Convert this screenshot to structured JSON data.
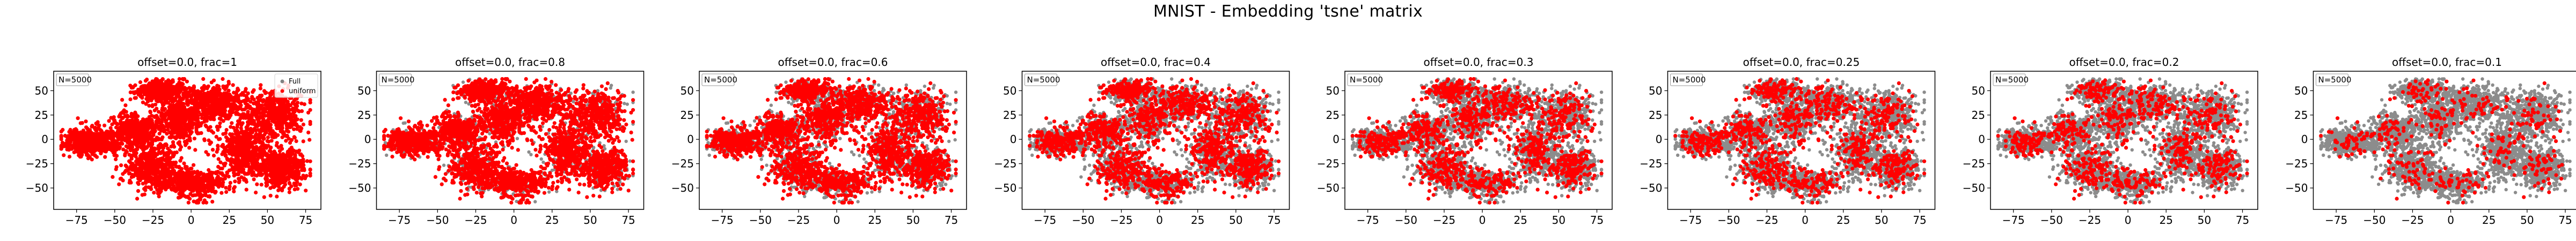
{
  "figure": {
    "title": "MNIST - Embedding 'tsne' matrix"
  },
  "colors": {
    "full": "#808080",
    "sample": "#ff0000",
    "axes": "#000000",
    "background": "#ffffff"
  },
  "chart_data": [
    {
      "type": "scatter",
      "title": "offset=0.0, frac=1",
      "annotation": "N=5000",
      "legend": [
        "Full",
        "uniform"
      ],
      "legend_position": "upper right",
      "frac": 1,
      "xlim": [
        -90,
        85
      ],
      "ylim": [
        -72,
        70
      ],
      "xticks": [
        -75,
        -50,
        -25,
        0,
        25,
        50,
        75
      ],
      "yticks": [
        -50,
        -25,
        0,
        25,
        50
      ],
      "series": [
        {
          "name": "Full"
        },
        {
          "name": "uniform"
        }
      ]
    },
    {
      "type": "scatter",
      "title": "offset=0.0, frac=0.8",
      "annotation": "N=5000",
      "frac": 0.8,
      "xlim": [
        -90,
        85
      ],
      "ylim": [
        -72,
        70
      ],
      "xticks": [
        -75,
        -50,
        -25,
        0,
        25,
        50,
        75
      ],
      "yticks": [
        -50,
        -25,
        0,
        25,
        50
      ]
    },
    {
      "type": "scatter",
      "title": "offset=0.0, frac=0.6",
      "annotation": "N=5000",
      "frac": 0.6,
      "xlim": [
        -90,
        85
      ],
      "ylim": [
        -72,
        70
      ],
      "xticks": [
        -75,
        -50,
        -25,
        0,
        25,
        50,
        75
      ],
      "yticks": [
        -50,
        -25,
        0,
        25,
        50
      ]
    },
    {
      "type": "scatter",
      "title": "offset=0.0, frac=0.4",
      "annotation": "N=5000",
      "frac": 0.4,
      "xlim": [
        -90,
        85
      ],
      "ylim": [
        -72,
        70
      ],
      "xticks": [
        -75,
        -50,
        -25,
        0,
        25,
        50,
        75
      ],
      "yticks": [
        -50,
        -25,
        0,
        25,
        50
      ]
    },
    {
      "type": "scatter",
      "title": "offset=0.0, frac=0.3",
      "annotation": "N=5000",
      "frac": 0.3,
      "xlim": [
        -90,
        85
      ],
      "ylim": [
        -72,
        70
      ],
      "xticks": [
        -75,
        -50,
        -25,
        0,
        25,
        50,
        75
      ],
      "yticks": [
        -50,
        -25,
        0,
        25,
        50
      ]
    },
    {
      "type": "scatter",
      "title": "offset=0.0, frac=0.25",
      "annotation": "N=5000",
      "frac": 0.25,
      "xlim": [
        -90,
        85
      ],
      "ylim": [
        -72,
        70
      ],
      "xticks": [
        -75,
        -50,
        -25,
        0,
        25,
        50,
        75
      ],
      "yticks": [
        -50,
        -25,
        0,
        25,
        50
      ]
    },
    {
      "type": "scatter",
      "title": "offset=0.0, frac=0.2",
      "annotation": "N=5000",
      "frac": 0.2,
      "xlim": [
        -90,
        85
      ],
      "ylim": [
        -72,
        70
      ],
      "xticks": [
        -75,
        -50,
        -25,
        0,
        25,
        50,
        75
      ],
      "yticks": [
        -50,
        -25,
        0,
        25,
        50
      ]
    },
    {
      "type": "scatter",
      "title": "offset=0.0, frac=0.1",
      "annotation": "N=5000",
      "frac": 0.1,
      "xlim": [
        -90,
        85
      ],
      "ylim": [
        -72,
        70
      ],
      "xticks": [
        -75,
        -50,
        -25,
        0,
        25,
        50,
        75
      ],
      "yticks": [
        -50,
        -25,
        0,
        25,
        50
      ]
    }
  ]
}
